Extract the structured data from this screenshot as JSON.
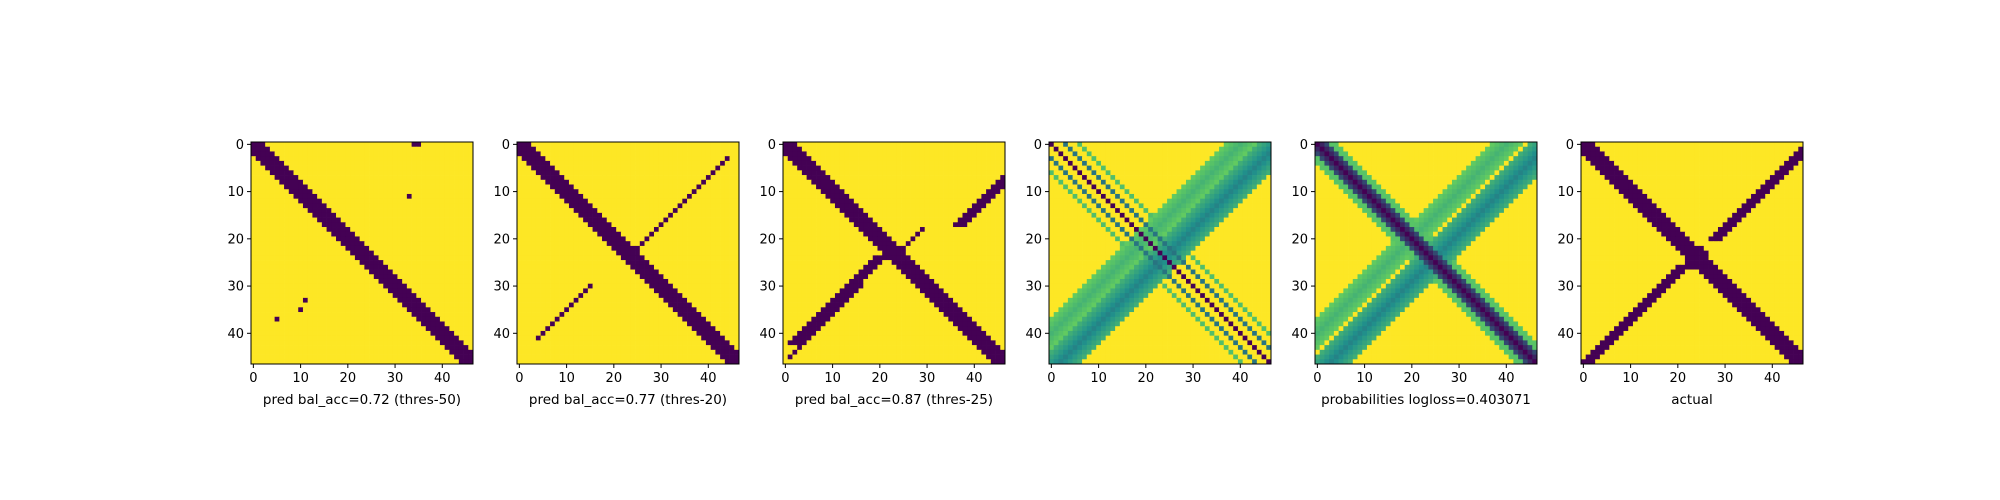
{
  "palette": {
    "viridis_dark": "#440154",
    "viridis_mid": "#21918c",
    "viridis_light": "#5ec962",
    "viridis_yellow": "#fde725",
    "axes": "#000000",
    "background": "#ffffff"
  },
  "chart_data": [
    {
      "type": "heatmap",
      "title": "",
      "xlabel": "pred bal_acc=0.72 (thres-50)",
      "ylabel": "",
      "size": 47,
      "xlim": [
        -0.5,
        46.5
      ],
      "ylim": [
        46.5,
        -0.5
      ],
      "xticks": [
        "0",
        "10",
        "20",
        "30",
        "40"
      ],
      "yticks": [
        "0",
        "10",
        "20",
        "30",
        "40"
      ],
      "value_range": [
        0,
        1
      ],
      "structure": {
        "main_diagonal_halfwidth": 2.2,
        "anti_diagonal_arms": [],
        "isolated_points": [
          [
            0,
            34
          ],
          [
            0,
            35
          ],
          [
            11,
            33
          ],
          [
            35,
            10
          ],
          [
            37,
            5
          ],
          [
            33,
            11
          ]
        ]
      }
    },
    {
      "type": "heatmap",
      "title": "",
      "xlabel": "pred bal_acc=0.77 (thres-20)",
      "ylabel": "",
      "size": 47,
      "xlim": [
        -0.5,
        46.5
      ],
      "ylim": [
        46.5,
        -0.5
      ],
      "xticks": [
        "0",
        "10",
        "20",
        "30",
        "40"
      ],
      "yticks": [
        "0",
        "10",
        "20",
        "30",
        "40"
      ],
      "value_range": [
        0,
        1
      ],
      "structure": {
        "main_diagonal_halfwidth": 2.4,
        "anti_diagonal_arms": [
          {
            "rows": [
              3,
              22
            ],
            "center": 47,
            "halfwidth": 0.6
          },
          {
            "rows": [
              30,
              41
            ],
            "center": 45,
            "halfwidth": 0.6
          }
        ]
      }
    },
    {
      "type": "heatmap",
      "title": "",
      "xlabel": "pred bal_acc=0.87 (thres-25)",
      "ylabel": "",
      "size": 47,
      "xlim": [
        -0.5,
        46.5
      ],
      "ylim": [
        46.5,
        -0.5
      ],
      "xticks": [
        "0",
        "10",
        "20",
        "30",
        "40"
      ],
      "yticks": [
        "0",
        "10",
        "20",
        "30",
        "40"
      ],
      "value_range": [
        0,
        1
      ],
      "structure": {
        "main_diagonal_halfwidth": 2.6,
        "anti_diagonal_arms": [
          {
            "rows": [
              1,
              17
            ],
            "center": 54,
            "halfwidth": 1.4
          },
          {
            "rows": [
              24,
              42
            ],
            "center": 44,
            "halfwidth": 1.6
          },
          {
            "rows": [
              18,
              23
            ],
            "center": 47,
            "halfwidth": 0.6
          },
          {
            "rows": [
              30,
              45
            ],
            "center": 46,
            "halfwidth": 0.6
          }
        ]
      }
    },
    {
      "type": "heatmap",
      "title": "",
      "xlabel": "",
      "ylabel": "",
      "size": 47,
      "xlim": [
        -0.5,
        46.5
      ],
      "ylim": [
        46.5,
        -0.5
      ],
      "xticks": [
        "0",
        "10",
        "20",
        "30",
        "40"
      ],
      "yticks": [
        "0",
        "10",
        "20",
        "30",
        "40"
      ],
      "value_range": [
        0,
        1
      ],
      "structure": {
        "stripes": [
          {
            "kind": "diag",
            "offset": 0,
            "halfwidth": 0.6,
            "value": 0.0
          },
          {
            "kind": "diag",
            "offset": 3,
            "halfwidth": 0.6,
            "value": 0.4
          },
          {
            "kind": "diag",
            "offset": -3,
            "halfwidth": 0.6,
            "value": 0.4
          },
          {
            "kind": "diag",
            "offset": 6,
            "halfwidth": 0.6,
            "value": 0.7
          },
          {
            "kind": "diag",
            "offset": -6,
            "halfwidth": 0.6,
            "value": 0.7
          },
          {
            "kind": "anti",
            "center": 48,
            "halfwidth": 4.0,
            "value": 0.45
          },
          {
            "kind": "anti",
            "center": 40,
            "halfwidth": 3.0,
            "value": 0.65
          }
        ]
      }
    },
    {
      "type": "heatmap",
      "title": "",
      "xlabel": "probabilities logloss=0.403071",
      "ylabel": "",
      "size": 47,
      "xlim": [
        -0.5,
        46.5
      ],
      "ylim": [
        46.5,
        -0.5
      ],
      "xticks": [
        "0",
        "10",
        "20",
        "30",
        "40"
      ],
      "yticks": [
        "0",
        "10",
        "20",
        "30",
        "40"
      ],
      "value_range": [
        0,
        1
      ],
      "structure": {
        "stripes": [
          {
            "kind": "diag",
            "offset": 0,
            "halfwidth": 2.2,
            "value": 0.0
          },
          {
            "kind": "diag",
            "offset": 3.5,
            "halfwidth": 1.2,
            "value": 0.7
          },
          {
            "kind": "diag",
            "offset": -3.5,
            "halfwidth": 1.2,
            "value": 0.7
          },
          {
            "kind": "anti",
            "center": 49,
            "halfwidth": 4.0,
            "value": 0.45
          },
          {
            "kind": "anti",
            "center": 40,
            "halfwidth": 3.0,
            "value": 0.65
          }
        ]
      }
    },
    {
      "type": "heatmap",
      "title": "",
      "xlabel": "actual",
      "ylabel": "",
      "size": 47,
      "xlim": [
        -0.5,
        46.5
      ],
      "ylim": [
        46.5,
        -0.5
      ],
      "xticks": [
        "0",
        "10",
        "20",
        "30",
        "40"
      ],
      "yticks": [
        "0",
        "10",
        "20",
        "30",
        "40"
      ],
      "value_range": [
        0,
        1
      ],
      "structure": {
        "main_diagonal_halfwidth": 2.6,
        "anti_diagonal_arms": [
          {
            "rows": [
              0,
              20
            ],
            "center": 48,
            "halfwidth": 1.8
          },
          {
            "rows": [
              26,
              46
            ],
            "center": 47,
            "halfwidth": 1.8
          }
        ],
        "center_blob": {
          "row": 24,
          "col": 24,
          "radius": 2.8
        }
      }
    }
  ]
}
